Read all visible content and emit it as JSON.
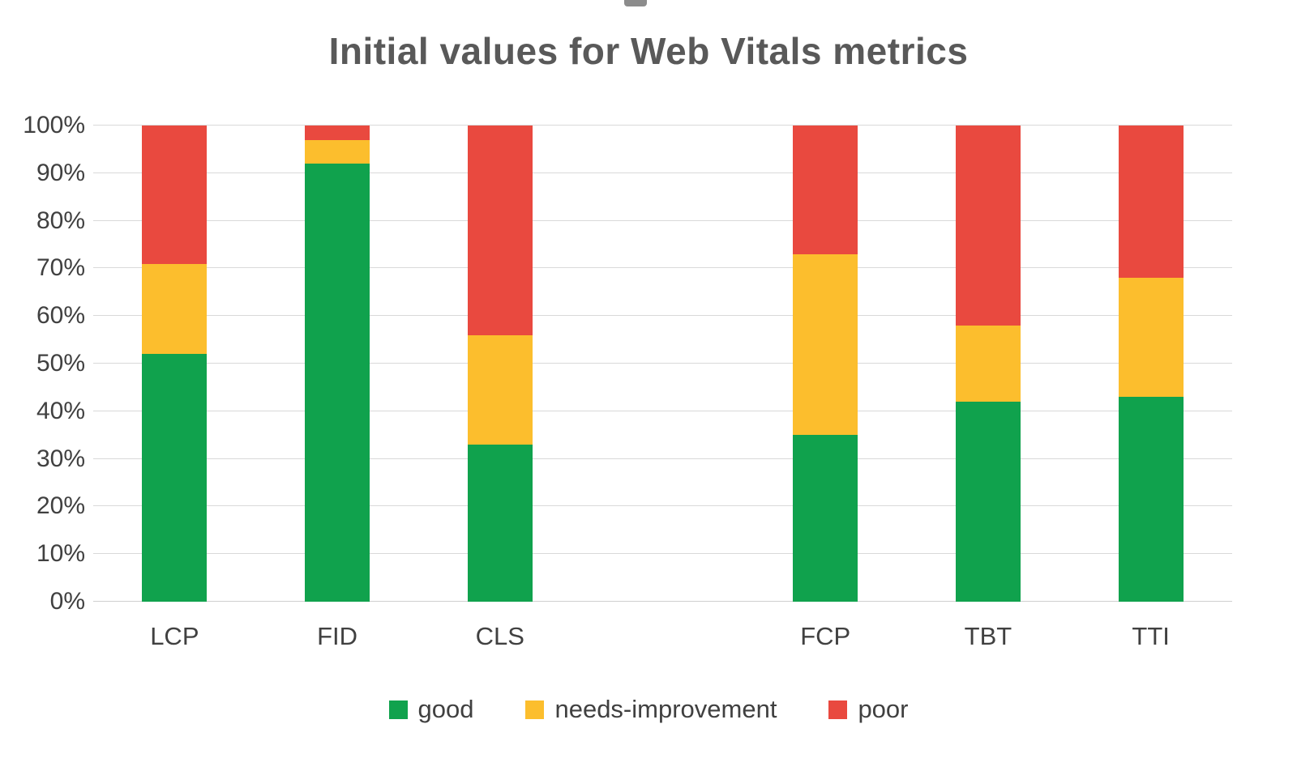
{
  "title": "Initial values for Web Vitals metrics",
  "colors": {
    "good": "#10a24d",
    "needs_improvement": "#fcbe2d",
    "poor": "#e9493f",
    "gridline": "#d9d9d9",
    "title_text": "#595959",
    "axis_text": "#404040"
  },
  "chart_data": {
    "type": "bar",
    "stacked": true,
    "title": "Initial values for Web Vitals metrics",
    "xlabel": "",
    "ylabel": "",
    "ylim": [
      0,
      100
    ],
    "grid": true,
    "legend_position": "bottom",
    "yticks": [
      "0%",
      "10%",
      "20%",
      "30%",
      "40%",
      "50%",
      "60%",
      "70%",
      "80%",
      "90%",
      "100%"
    ],
    "categories": [
      "LCP",
      "FID",
      "CLS",
      "",
      "FCP",
      "TBT",
      "TTI"
    ],
    "series": [
      {
        "name": "good",
        "color": "#10a24d",
        "values": [
          52,
          92,
          33,
          null,
          35,
          42,
          43
        ]
      },
      {
        "name": "needs-improvement",
        "color": "#fcbe2d",
        "values": [
          19,
          5,
          23,
          null,
          38,
          16,
          25
        ]
      },
      {
        "name": "poor",
        "color": "#e9493f",
        "values": [
          29,
          3,
          44,
          null,
          27,
          42,
          32
        ]
      }
    ]
  },
  "legend": {
    "items": [
      {
        "label": "good"
      },
      {
        "label": "needs-improvement"
      },
      {
        "label": "poor"
      }
    ]
  }
}
